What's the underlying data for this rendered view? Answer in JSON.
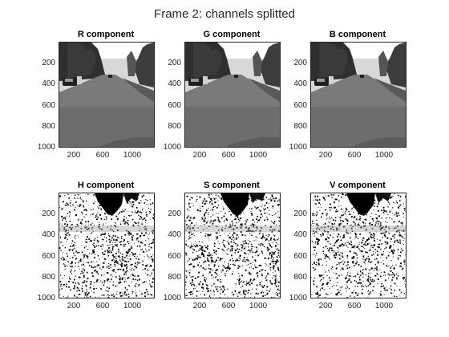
{
  "figure": {
    "title": "Frame 2: channels splitted"
  },
  "panels": [
    {
      "id": "r",
      "title": "R component",
      "kind": "gray"
    },
    {
      "id": "g",
      "title": "G component",
      "kind": "gray"
    },
    {
      "id": "b",
      "title": "B component",
      "kind": "gray"
    },
    {
      "id": "h",
      "title": "H component",
      "kind": "noise"
    },
    {
      "id": "s",
      "title": "S component",
      "kind": "noise"
    },
    {
      "id": "v",
      "title": "V component",
      "kind": "noise"
    }
  ],
  "axes": {
    "y_ticks": [
      "200",
      "400",
      "600",
      "800",
      "1000"
    ],
    "x_ticks": [
      "200",
      "600",
      "1000"
    ]
  }
}
